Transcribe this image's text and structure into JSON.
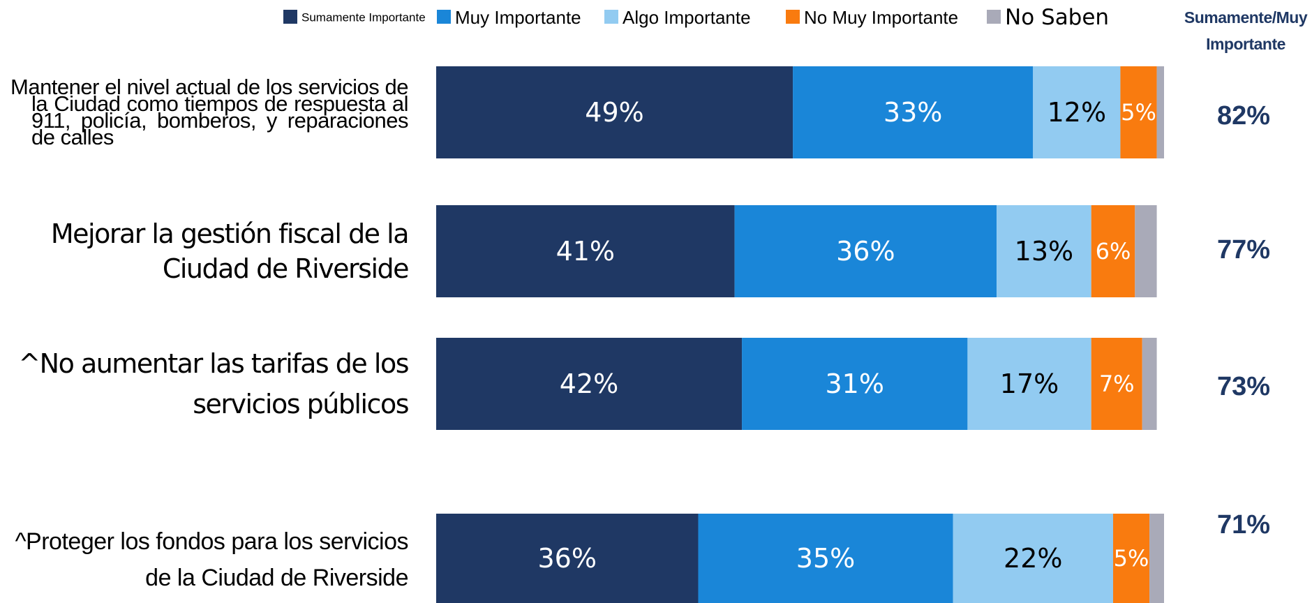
{
  "chart_data": {
    "type": "stacked-bar",
    "categories": [
      "Mantener el nivel actual de los servicios de la Ciudad como tiempos de respuesta al 911, policía, bomberos, y reparaciones de calles",
      "Mejorar la gestión fiscal de la Ciudad de Riverside",
      "^No aumentar las tarifas de los servicios públicos",
      "^Proteger los fondos para los servicios de la Ciudad de Riverside"
    ],
    "series": [
      {
        "name": "Sumamente Importante",
        "color": "#1f3864",
        "values": [
          49,
          41,
          42,
          36
        ],
        "value_labels": [
          "49%",
          "41%",
          "42%",
          "36%"
        ]
      },
      {
        "name": "Muy Importante",
        "color": "#1a86d8",
        "values": [
          33,
          36,
          31,
          35
        ],
        "value_labels": [
          "33%",
          "36%",
          "31%",
          "35%"
        ]
      },
      {
        "name": "Algo Importante",
        "color": "#92cbf1",
        "values": [
          12,
          13,
          17,
          22
        ],
        "value_labels": [
          "12%",
          "13%",
          "17%",
          "22%"
        ]
      },
      {
        "name": "No Muy Importante",
        "color": "#f97b0f",
        "values": [
          5,
          6,
          7,
          5
        ],
        "value_labels": [
          "5%",
          "6%",
          "7%",
          "5%"
        ]
      },
      {
        "name": "No Saben",
        "color": "#a9aab8",
        "values": [
          1,
          3,
          2,
          2
        ]
      }
    ],
    "totals": {
      "title": "Sumamente/Muy Importante",
      "values": [
        82,
        77,
        73,
        71
      ],
      "value_labels": [
        "82%",
        "77%",
        "73%",
        "71%"
      ]
    },
    "xlim": [
      0,
      100
    ]
  }
}
